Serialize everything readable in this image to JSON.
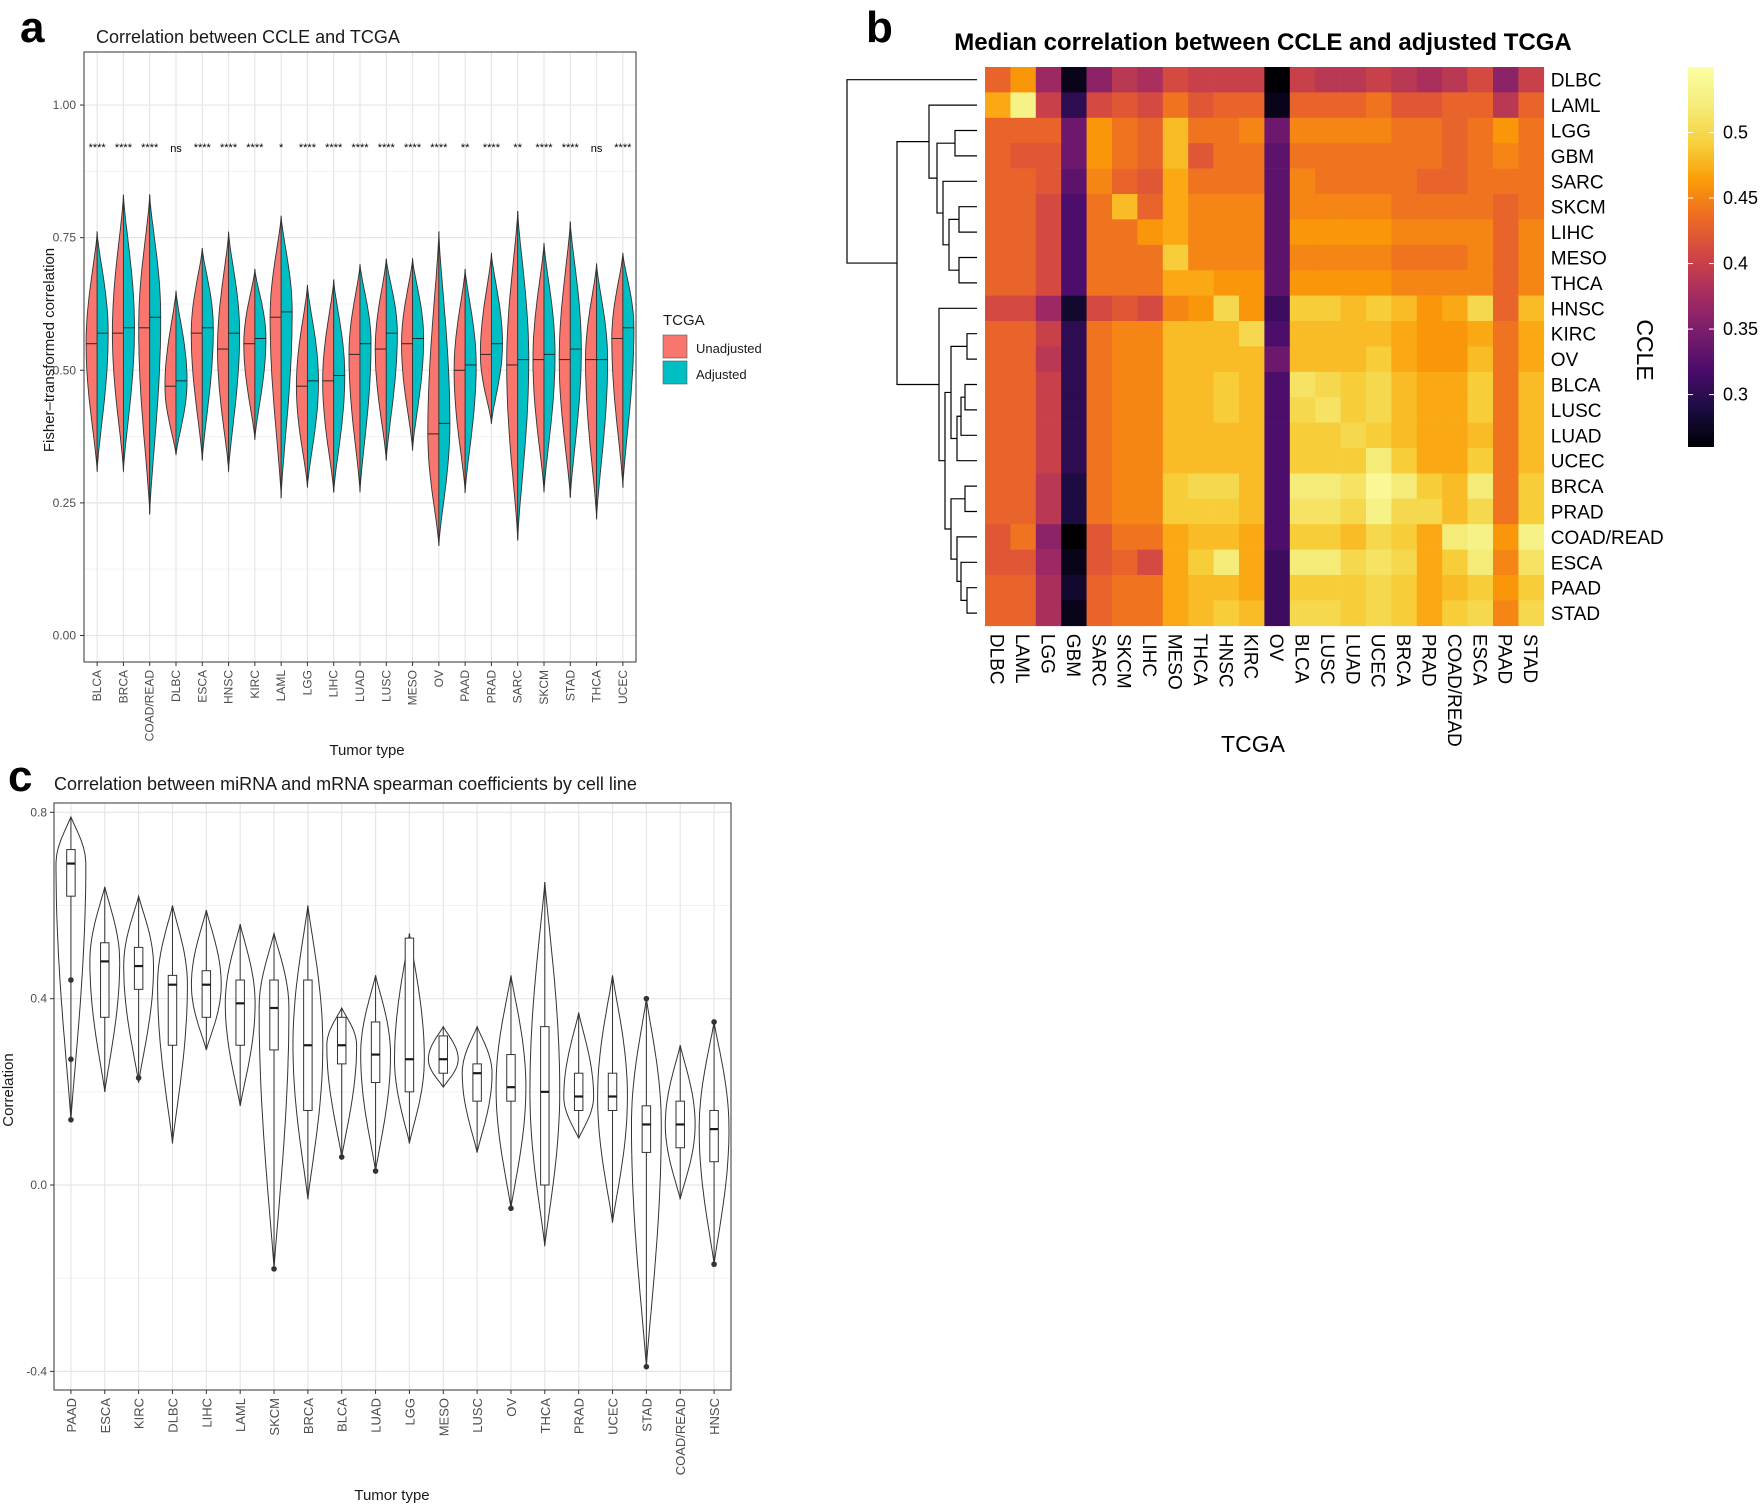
{
  "panels": {
    "a": {
      "letter": "a"
    },
    "b": {
      "letter": "b"
    },
    "c": {
      "letter": "c"
    }
  },
  "colors": {
    "unadjusted": "#F8766D",
    "adjusted": "#00BFC4",
    "panel_border": "#333333",
    "grid": "#EBEBEB"
  },
  "chart_data": [
    {
      "id": "a",
      "type": "violin",
      "title": "Correlation between CCLE and TCGA",
      "xlabel": "Tumor type",
      "ylabel": "Fisher–transformed correlation",
      "ylim": [
        -0.05,
        1.1
      ],
      "yticks": [
        0.0,
        0.25,
        0.5,
        0.75,
        1.0
      ],
      "ytick_labels": [
        "0.00",
        "0.25",
        "0.50",
        "0.75",
        "1.00"
      ],
      "grid": true,
      "legend": {
        "title": "TCGA",
        "placement": "right",
        "entries": [
          "Unadjusted",
          "Adjusted"
        ]
      },
      "categories": [
        "BLCA",
        "BRCA",
        "COAD/READ",
        "DLBC",
        "ESCA",
        "HNSC",
        "KIRC",
        "LAML",
        "LGG",
        "LIHC",
        "LUAD",
        "LUSC",
        "MESO",
        "OV",
        "PAAD",
        "PRAD",
        "SARC",
        "SKCM",
        "STAD",
        "THCA",
        "UCEC"
      ],
      "significance": [
        "****",
        "****",
        "****",
        "ns",
        "****",
        "****",
        "****",
        "*",
        "****",
        "****",
        "****",
        "****",
        "****",
        "****",
        "**",
        "****",
        "**",
        "****",
        "****",
        "ns",
        "****"
      ],
      "series": [
        {
          "name": "Unadjusted",
          "median": [
            0.55,
            0.57,
            0.58,
            0.47,
            0.57,
            0.54,
            0.55,
            0.6,
            0.47,
            0.48,
            0.53,
            0.54,
            0.55,
            0.38,
            0.5,
            0.53,
            0.51,
            0.52,
            0.52,
            0.52,
            0.56
          ],
          "min": [
            0.31,
            0.31,
            0.23,
            0.34,
            0.33,
            0.31,
            0.37,
            0.26,
            0.28,
            0.27,
            0.27,
            0.33,
            0.35,
            0.17,
            0.27,
            0.4,
            0.18,
            0.27,
            0.26,
            0.22,
            0.28
          ],
          "max": [
            0.76,
            0.83,
            0.83,
            0.65,
            0.73,
            0.76,
            0.69,
            0.79,
            0.66,
            0.67,
            0.7,
            0.71,
            0.71,
            0.76,
            0.69,
            0.72,
            0.8,
            0.74,
            0.78,
            0.7,
            0.72
          ]
        },
        {
          "name": "Adjusted",
          "median": [
            0.57,
            0.58,
            0.6,
            0.48,
            0.58,
            0.57,
            0.56,
            0.61,
            0.48,
            0.49,
            0.55,
            0.57,
            0.56,
            0.4,
            0.51,
            0.55,
            0.52,
            0.53,
            0.54,
            0.52,
            0.58
          ],
          "min": [
            0.31,
            0.31,
            0.23,
            0.34,
            0.33,
            0.31,
            0.37,
            0.26,
            0.28,
            0.27,
            0.27,
            0.33,
            0.35,
            0.17,
            0.27,
            0.4,
            0.18,
            0.27,
            0.26,
            0.22,
            0.28
          ],
          "max": [
            0.76,
            0.83,
            0.83,
            0.65,
            0.73,
            0.76,
            0.69,
            0.79,
            0.66,
            0.67,
            0.7,
            0.71,
            0.71,
            0.76,
            0.69,
            0.72,
            0.8,
            0.74,
            0.78,
            0.7,
            0.72
          ]
        }
      ]
    },
    {
      "id": "b",
      "type": "heatmap",
      "title": "Median correlation between CCLE and adjusted TCGA",
      "xlabel": "TCGA",
      "ylabel": "CCLE",
      "x": [
        "DLBC",
        "LAML",
        "LGG",
        "GBM",
        "SARC",
        "SKCM",
        "LIHC",
        "MESO",
        "THCA",
        "HNSC",
        "KIRC",
        "OV",
        "BLCA",
        "LUSC",
        "LUAD",
        "UCEC",
        "BRCA",
        "PRAD",
        "COAD/READ",
        "ESCA",
        "PAAD",
        "STAD"
      ],
      "y": [
        "DLBC",
        "LAML",
        "LGG",
        "GBM",
        "SARC",
        "SKCM",
        "LIHC",
        "MESO",
        "THCA",
        "HNSC",
        "KIRC",
        "OV",
        "BLCA",
        "LUSC",
        "LUAD",
        "UCEC",
        "BRCA",
        "PRAD",
        "COAD/READ",
        "ESCA",
        "PAAD",
        "STAD"
      ],
      "colorbar": {
        "ticks": [
          0.3,
          0.35,
          0.4,
          0.45,
          0.5
        ],
        "tick_labels": [
          "0.3",
          "0.35",
          "0.4",
          "0.45",
          "0.5"
        ],
        "range": [
          0.26,
          0.55
        ],
        "colormap": "inferno"
      },
      "dendrogram": "rows",
      "values": [
        [
          0.43,
          0.46,
          0.37,
          0.27,
          0.36,
          0.39,
          0.38,
          0.41,
          0.4,
          0.4,
          0.4,
          0.25,
          0.4,
          0.39,
          0.39,
          0.4,
          0.39,
          0.38,
          0.39,
          0.41,
          0.36,
          0.4
        ],
        [
          0.47,
          0.53,
          0.4,
          0.3,
          0.41,
          0.42,
          0.41,
          0.44,
          0.42,
          0.43,
          0.43,
          0.27,
          0.43,
          0.43,
          0.43,
          0.44,
          0.42,
          0.42,
          0.43,
          0.43,
          0.39,
          0.43
        ],
        [
          0.43,
          0.43,
          0.43,
          0.34,
          0.46,
          0.44,
          0.43,
          0.48,
          0.44,
          0.44,
          0.45,
          0.34,
          0.45,
          0.45,
          0.45,
          0.45,
          0.44,
          0.44,
          0.43,
          0.44,
          0.46,
          0.44
        ],
        [
          0.43,
          0.42,
          0.42,
          0.34,
          0.46,
          0.44,
          0.43,
          0.48,
          0.42,
          0.44,
          0.44,
          0.33,
          0.44,
          0.44,
          0.44,
          0.44,
          0.44,
          0.44,
          0.43,
          0.44,
          0.45,
          0.44
        ],
        [
          0.43,
          0.43,
          0.42,
          0.33,
          0.45,
          0.43,
          0.42,
          0.47,
          0.44,
          0.44,
          0.44,
          0.33,
          0.45,
          0.44,
          0.44,
          0.44,
          0.44,
          0.43,
          0.43,
          0.44,
          0.44,
          0.44
        ],
        [
          0.43,
          0.43,
          0.41,
          0.32,
          0.44,
          0.48,
          0.43,
          0.47,
          0.45,
          0.45,
          0.45,
          0.33,
          0.45,
          0.45,
          0.45,
          0.45,
          0.44,
          0.44,
          0.44,
          0.44,
          0.43,
          0.44
        ],
        [
          0.43,
          0.43,
          0.41,
          0.32,
          0.44,
          0.44,
          0.46,
          0.47,
          0.45,
          0.45,
          0.45,
          0.33,
          0.46,
          0.46,
          0.46,
          0.46,
          0.45,
          0.45,
          0.45,
          0.45,
          0.43,
          0.45
        ],
        [
          0.43,
          0.43,
          0.41,
          0.32,
          0.44,
          0.44,
          0.44,
          0.49,
          0.45,
          0.45,
          0.45,
          0.33,
          0.45,
          0.45,
          0.45,
          0.45,
          0.44,
          0.44,
          0.44,
          0.45,
          0.43,
          0.45
        ],
        [
          0.43,
          0.43,
          0.41,
          0.32,
          0.44,
          0.44,
          0.44,
          0.47,
          0.47,
          0.46,
          0.46,
          0.33,
          0.46,
          0.46,
          0.46,
          0.46,
          0.45,
          0.45,
          0.45,
          0.45,
          0.43,
          0.45
        ],
        [
          0.41,
          0.41,
          0.37,
          0.28,
          0.41,
          0.42,
          0.41,
          0.45,
          0.46,
          0.5,
          0.46,
          0.31,
          0.49,
          0.49,
          0.48,
          0.49,
          0.48,
          0.46,
          0.47,
          0.5,
          0.43,
          0.48
        ],
        [
          0.43,
          0.43,
          0.4,
          0.3,
          0.44,
          0.45,
          0.45,
          0.48,
          0.48,
          0.48,
          0.5,
          0.32,
          0.48,
          0.48,
          0.48,
          0.48,
          0.47,
          0.46,
          0.46,
          0.47,
          0.44,
          0.47
        ],
        [
          0.43,
          0.43,
          0.39,
          0.3,
          0.44,
          0.45,
          0.45,
          0.48,
          0.48,
          0.48,
          0.48,
          0.34,
          0.48,
          0.48,
          0.48,
          0.49,
          0.47,
          0.46,
          0.46,
          0.48,
          0.44,
          0.47
        ],
        [
          0.43,
          0.43,
          0.4,
          0.3,
          0.44,
          0.45,
          0.45,
          0.48,
          0.48,
          0.49,
          0.48,
          0.32,
          0.51,
          0.5,
          0.49,
          0.5,
          0.48,
          0.47,
          0.47,
          0.49,
          0.44,
          0.48
        ],
        [
          0.43,
          0.43,
          0.4,
          0.3,
          0.44,
          0.45,
          0.45,
          0.48,
          0.48,
          0.49,
          0.48,
          0.32,
          0.5,
          0.51,
          0.49,
          0.5,
          0.48,
          0.47,
          0.47,
          0.49,
          0.44,
          0.48
        ],
        [
          0.43,
          0.43,
          0.4,
          0.3,
          0.44,
          0.45,
          0.45,
          0.48,
          0.48,
          0.48,
          0.48,
          0.32,
          0.49,
          0.49,
          0.5,
          0.49,
          0.48,
          0.47,
          0.47,
          0.48,
          0.44,
          0.48
        ],
        [
          0.43,
          0.43,
          0.4,
          0.3,
          0.44,
          0.45,
          0.45,
          0.48,
          0.48,
          0.48,
          0.48,
          0.32,
          0.49,
          0.49,
          0.49,
          0.52,
          0.49,
          0.47,
          0.47,
          0.49,
          0.44,
          0.48
        ],
        [
          0.43,
          0.43,
          0.39,
          0.29,
          0.44,
          0.45,
          0.45,
          0.49,
          0.5,
          0.5,
          0.48,
          0.32,
          0.52,
          0.52,
          0.51,
          0.54,
          0.52,
          0.49,
          0.48,
          0.52,
          0.44,
          0.49
        ],
        [
          0.43,
          0.43,
          0.39,
          0.29,
          0.44,
          0.45,
          0.45,
          0.49,
          0.49,
          0.49,
          0.48,
          0.32,
          0.51,
          0.51,
          0.5,
          0.53,
          0.5,
          0.5,
          0.48,
          0.5,
          0.44,
          0.49
        ],
        [
          0.42,
          0.44,
          0.36,
          0.26,
          0.42,
          0.44,
          0.44,
          0.47,
          0.48,
          0.48,
          0.47,
          0.32,
          0.49,
          0.49,
          0.48,
          0.5,
          0.49,
          0.47,
          0.52,
          0.53,
          0.46,
          0.53
        ],
        [
          0.42,
          0.42,
          0.37,
          0.27,
          0.42,
          0.43,
          0.41,
          0.47,
          0.49,
          0.52,
          0.47,
          0.31,
          0.52,
          0.52,
          0.5,
          0.51,
          0.5,
          0.47,
          0.49,
          0.52,
          0.45,
          0.51
        ],
        [
          0.43,
          0.43,
          0.38,
          0.28,
          0.43,
          0.44,
          0.44,
          0.47,
          0.48,
          0.48,
          0.47,
          0.31,
          0.49,
          0.49,
          0.49,
          0.5,
          0.49,
          0.47,
          0.48,
          0.49,
          0.46,
          0.49
        ],
        [
          0.43,
          0.43,
          0.38,
          0.27,
          0.43,
          0.44,
          0.44,
          0.47,
          0.48,
          0.49,
          0.48,
          0.31,
          0.5,
          0.5,
          0.49,
          0.5,
          0.49,
          0.47,
          0.49,
          0.5,
          0.45,
          0.5
        ]
      ]
    },
    {
      "id": "c",
      "type": "violin",
      "title": "Correlation between miRNA and mRNA spearman coefficients by cell line",
      "xlabel": "Tumor type",
      "ylabel": "Correlation",
      "ylim": [
        -0.44,
        0.82
      ],
      "yticks": [
        -0.4,
        0.0,
        0.4,
        0.8
      ],
      "ytick_labels": [
        "-0.4",
        "0.0",
        "0.4",
        "0.8"
      ],
      "grid": true,
      "categories": [
        "PAAD",
        "ESCA",
        "KIRC",
        "DLBC",
        "LIHC",
        "LAML",
        "SKCM",
        "BRCA",
        "BLCA",
        "LUAD",
        "LGG",
        "MESO",
        "LUSC",
        "OV",
        "THCA",
        "PRAD",
        "UCEC",
        "STAD",
        "COAD/READ",
        "HNSC"
      ],
      "min": [
        0.14,
        0.2,
        0.22,
        0.09,
        0.29,
        0.17,
        -0.18,
        -0.03,
        0.06,
        0.03,
        0.09,
        0.21,
        0.07,
        -0.05,
        -0.13,
        0.1,
        -0.08,
        -0.39,
        -0.03,
        -0.17
      ],
      "max": [
        0.79,
        0.64,
        0.62,
        0.6,
        0.59,
        0.56,
        0.54,
        0.6,
        0.38,
        0.45,
        0.54,
        0.34,
        0.34,
        0.45,
        0.65,
        0.37,
        0.45,
        0.4,
        0.3,
        0.35
      ],
      "q1": [
        0.62,
        0.36,
        0.42,
        0.3,
        0.36,
        0.3,
        0.29,
        0.16,
        0.26,
        0.22,
        0.2,
        0.24,
        0.18,
        0.18,
        0.0,
        0.16,
        0.16,
        0.07,
        0.08,
        0.05
      ],
      "median": [
        0.69,
        0.48,
        0.47,
        0.43,
        0.43,
        0.39,
        0.38,
        0.3,
        0.3,
        0.28,
        0.27,
        0.27,
        0.24,
        0.21,
        0.2,
        0.19,
        0.19,
        0.13,
        0.13,
        0.12
      ],
      "q3": [
        0.72,
        0.52,
        0.51,
        0.45,
        0.46,
        0.44,
        0.44,
        0.44,
        0.36,
        0.35,
        0.53,
        0.32,
        0.26,
        0.28,
        0.34,
        0.24,
        0.24,
        0.17,
        0.18,
        0.16
      ],
      "outliers": [
        [
          0.44,
          0.27,
          0.14
        ],
        [],
        [
          0.23
        ],
        [],
        [],
        [],
        [
          -0.18
        ],
        [],
        [
          0.06
        ],
        [
          0.03
        ],
        [],
        [],
        [],
        [
          -0.05
        ],
        [],
        [],
        [],
        [
          0.4,
          -0.39
        ],
        [],
        [
          0.35,
          -0.17
        ]
      ]
    }
  ]
}
